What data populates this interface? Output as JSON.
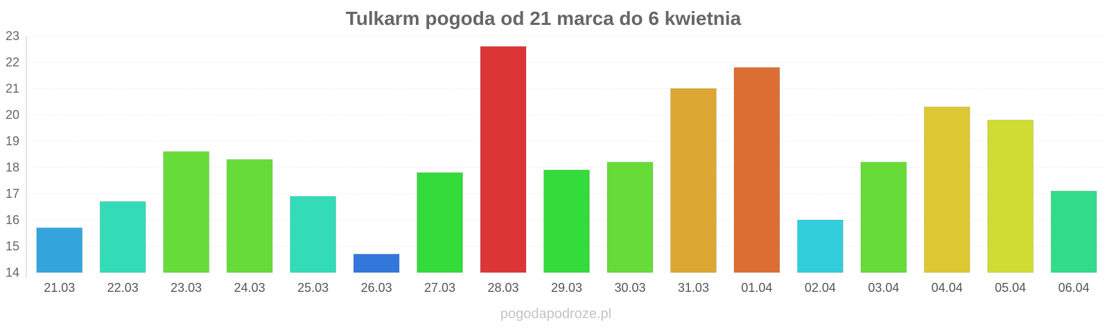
{
  "chart_data": {
    "type": "bar",
    "title": "Tulkarm pogoda od 21 marca do 6 kwietnia",
    "xlabel": "",
    "ylabel": "",
    "ylim": [
      14,
      23
    ],
    "yticks": [
      "14",
      "15",
      "16",
      "17",
      "18",
      "19",
      "20",
      "21",
      "22",
      "23"
    ],
    "grid": true,
    "categories": [
      "21.03",
      "22.03",
      "23.03",
      "24.03",
      "25.03",
      "26.03",
      "27.03",
      "28.03",
      "29.03",
      "30.03",
      "31.03",
      "01.04",
      "02.04",
      "03.04",
      "04.04",
      "05.04",
      "06.04"
    ],
    "values": [
      15.7,
      16.7,
      18.6,
      18.3,
      16.9,
      14.7,
      17.8,
      22.6,
      17.9,
      18.2,
      21.0,
      21.8,
      16.0,
      18.2,
      20.3,
      19.8,
      17.1
    ],
    "colors": [
      "#33a5dc",
      "#33dbb9",
      "#67dc38",
      "#67dc38",
      "#33dbb9",
      "#3377dc",
      "#33dc3a",
      "#dc3535",
      "#33dc3a",
      "#67dc38",
      "#dca833",
      "#dc6e33",
      "#33cedb",
      "#67dc38",
      "#dcc833",
      "#cedc33",
      "#33dc8a"
    ]
  },
  "watermark": "pogodapodroze.pl"
}
